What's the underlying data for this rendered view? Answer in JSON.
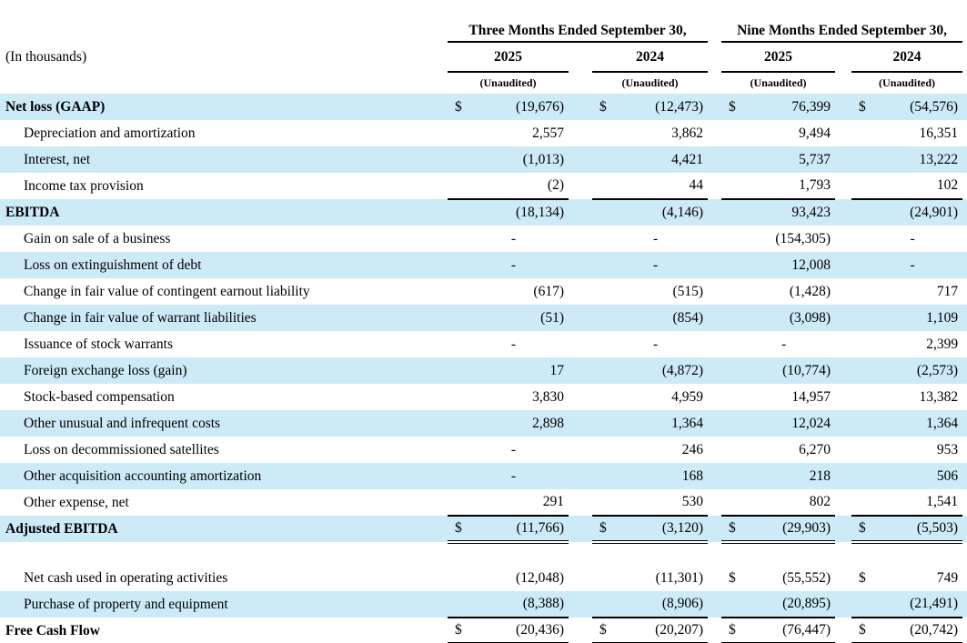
{
  "colors": {
    "stripe": "#cdeaf7",
    "text": "#000000",
    "background": "#ffffff"
  },
  "header": {
    "units_note": "(In thousands)",
    "unaudited": "(Unaudited)",
    "groups": [
      {
        "title": "Three Months Ended September 30,",
        "years": [
          "2025",
          "2024"
        ]
      },
      {
        "title": "Nine Months Ended September 30,",
        "years": [
          "2025",
          "2024"
        ]
      }
    ]
  },
  "table": {
    "currency_symbol": "$",
    "rows": [
      {
        "label": "Net loss (GAAP)",
        "bold": true,
        "shaded": true,
        "dollars": [
          true,
          true,
          true,
          true
        ],
        "values": [
          "(19,676)",
          "(12,473)",
          "76,399",
          "(54,576)"
        ],
        "rule": "none"
      },
      {
        "label": "Depreciation and amortization",
        "indent": true,
        "values": [
          "2,557",
          "3,862",
          "9,494",
          "16,351"
        ],
        "rule": "none"
      },
      {
        "label": "Interest, net",
        "indent": true,
        "shaded": true,
        "values": [
          "(1,013)",
          "4,421",
          "5,737",
          "13,222"
        ],
        "rule": "none"
      },
      {
        "label": "Income tax provision",
        "indent": true,
        "values": [
          "(2)",
          "44",
          "1,793",
          "102"
        ],
        "rule": "single"
      },
      {
        "label": "EBITDA",
        "bold": true,
        "shaded": true,
        "values": [
          "(18,134)",
          "(4,146)",
          "93,423",
          "(24,901)"
        ],
        "rule": "none"
      },
      {
        "label": "Gain on sale of a business",
        "indent": true,
        "values": [
          "-",
          "-",
          "(154,305)",
          "-"
        ],
        "rule": "none"
      },
      {
        "label": "Loss on extinguishment of debt",
        "indent": true,
        "shaded": true,
        "values": [
          "-",
          "-",
          "12,008",
          "-"
        ],
        "rule": "none"
      },
      {
        "label": "Change in fair value of contingent earnout liability",
        "indent": true,
        "values": [
          "(617)",
          "(515)",
          "(1,428)",
          "717"
        ],
        "rule": "none"
      },
      {
        "label": "Change in fair value of warrant liabilities",
        "indent": true,
        "shaded": true,
        "values": [
          "(51)",
          "(854)",
          "(3,098)",
          "1,109"
        ],
        "rule": "none"
      },
      {
        "label": "Issuance of stock warrants",
        "indent": true,
        "values": [
          "-",
          "-",
          "-",
          "2,399"
        ],
        "rule": "none"
      },
      {
        "label": "Foreign exchange loss (gain)",
        "indent": true,
        "shaded": true,
        "values": [
          "17",
          "(4,872)",
          "(10,774)",
          "(2,573)"
        ],
        "rule": "none"
      },
      {
        "label": "Stock-based compensation",
        "indent": true,
        "values": [
          "3,830",
          "4,959",
          "14,957",
          "13,382"
        ],
        "rule": "none"
      },
      {
        "label": "Other unusual and infrequent costs",
        "indent": true,
        "shaded": true,
        "values": [
          "2,898",
          "1,364",
          "12,024",
          "1,364"
        ],
        "rule": "none"
      },
      {
        "label": "Loss on decommissioned satellites",
        "indent": true,
        "values": [
          "-",
          "246",
          "6,270",
          "953"
        ],
        "rule": "none"
      },
      {
        "label": "Other acquisition accounting amortization",
        "indent": true,
        "shaded": true,
        "values": [
          "-",
          "168",
          "218",
          "506"
        ],
        "rule": "none"
      },
      {
        "label": "Other expense, net",
        "indent": true,
        "values": [
          "291",
          "530",
          "802",
          "1,541"
        ],
        "rule": "single"
      },
      {
        "label": "Adjusted EBITDA",
        "bold": true,
        "shaded": true,
        "dollars": [
          true,
          true,
          true,
          true
        ],
        "values": [
          "(11,766)",
          "(3,120)",
          "(29,903)",
          "(5,503)"
        ],
        "rule": "double"
      },
      {
        "spacer": true
      },
      {
        "label": "Net cash used in operating activities",
        "indent": true,
        "dollars": [
          false,
          false,
          true,
          true
        ],
        "values": [
          "(12,048)",
          "(11,301)",
          "(55,552)",
          "749"
        ],
        "rule": "none"
      },
      {
        "label": "Purchase of property and equipment",
        "indent": true,
        "shaded": true,
        "values": [
          "(8,388)",
          "(8,906)",
          "(20,895)",
          "(21,491)"
        ],
        "rule": "single"
      },
      {
        "label": "Free Cash Flow",
        "bold": true,
        "dollars": [
          true,
          true,
          true,
          true
        ],
        "values": [
          "(20,436)",
          "(20,207)",
          "(76,447)",
          "(20,742)"
        ],
        "rule": "double"
      }
    ]
  }
}
